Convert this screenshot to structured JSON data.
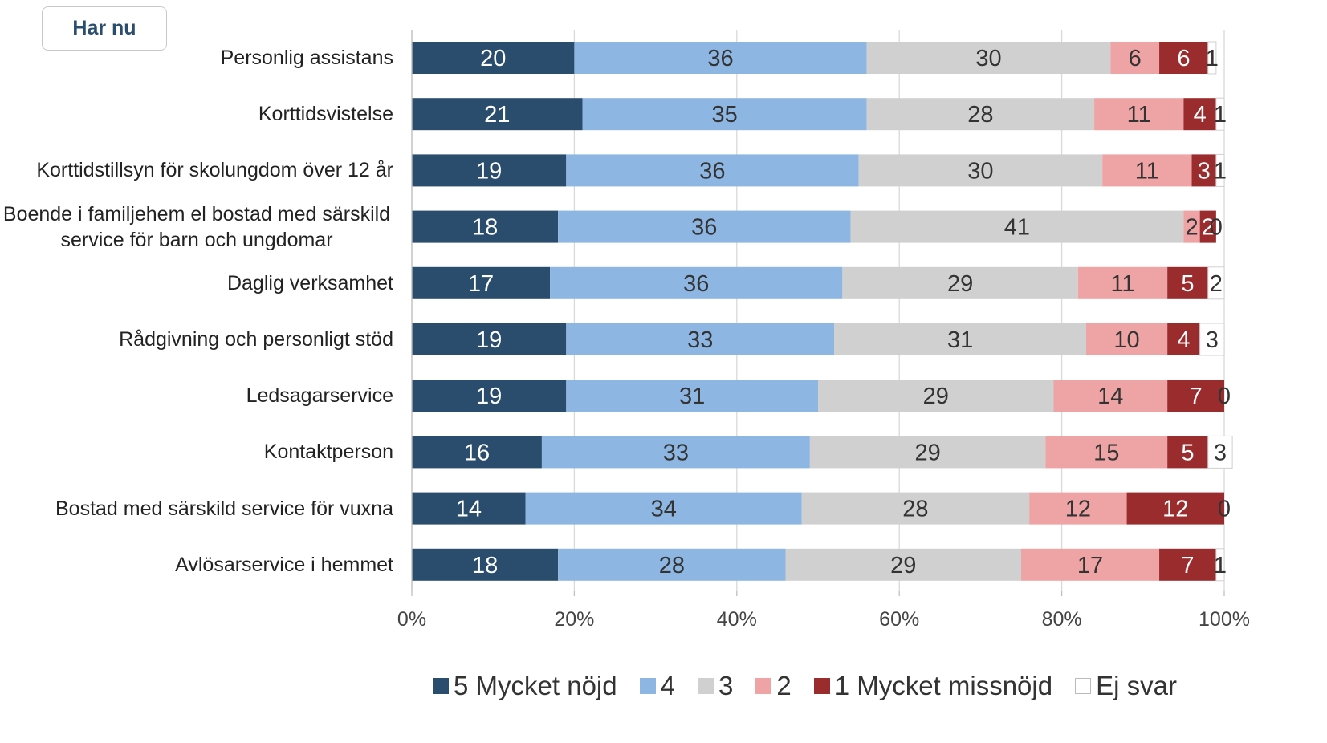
{
  "button": {
    "label": "Har nu"
  },
  "chart_data": {
    "type": "stacked-barh",
    "categories": [
      "Personlig assistans",
      "Korttidsvistelse",
      "Korttidstillsyn för skolungdom över 12 år",
      "Boende i familjehem el bostad med särskild service för barn och ungdomar",
      "Daglig verksamhet",
      "Rådgivning och personligt stöd",
      "Ledsagarservice",
      "Kontaktperson",
      "Bostad med särskild service för vuxna",
      "Avlösarservice i hemmet"
    ],
    "series": [
      {
        "name": "5 Mycket nöjd",
        "color": "#2a4d6e",
        "text_color": "#ffffff",
        "values": [
          20,
          21,
          19,
          18,
          17,
          19,
          19,
          16,
          14,
          18
        ]
      },
      {
        "name": "4",
        "color": "#8db7e2",
        "text_color": "#333333",
        "values": [
          36,
          35,
          36,
          36,
          36,
          33,
          31,
          33,
          34,
          28
        ]
      },
      {
        "name": "3",
        "color": "#d0d0d0",
        "text_color": "#333333",
        "values": [
          30,
          28,
          30,
          41,
          29,
          31,
          29,
          29,
          28,
          29
        ]
      },
      {
        "name": "2",
        "color": "#eea4a4",
        "text_color": "#333333",
        "values": [
          6,
          11,
          11,
          2,
          11,
          10,
          14,
          15,
          12,
          17
        ]
      },
      {
        "name": "1 Mycket missnöjd",
        "color": "#9b2c2e",
        "text_color": "#ffffff",
        "values": [
          6,
          4,
          3,
          2,
          5,
          4,
          7,
          5,
          12,
          7
        ]
      },
      {
        "name": "Ej svar",
        "color": "#ffffff",
        "text_color": "#333333",
        "values": [
          1,
          1,
          1,
          0,
          2,
          3,
          0,
          3,
          0,
          1
        ]
      }
    ],
    "xlim": [
      0,
      100
    ],
    "xticks": [
      {
        "value": 0,
        "label": "0%"
      },
      {
        "value": 20,
        "label": "20%"
      },
      {
        "value": 40,
        "label": "40%"
      },
      {
        "value": 60,
        "label": "60%"
      },
      {
        "value": 80,
        "label": "80%"
      },
      {
        "value": 100,
        "label": "100%"
      }
    ],
    "grid": true
  }
}
